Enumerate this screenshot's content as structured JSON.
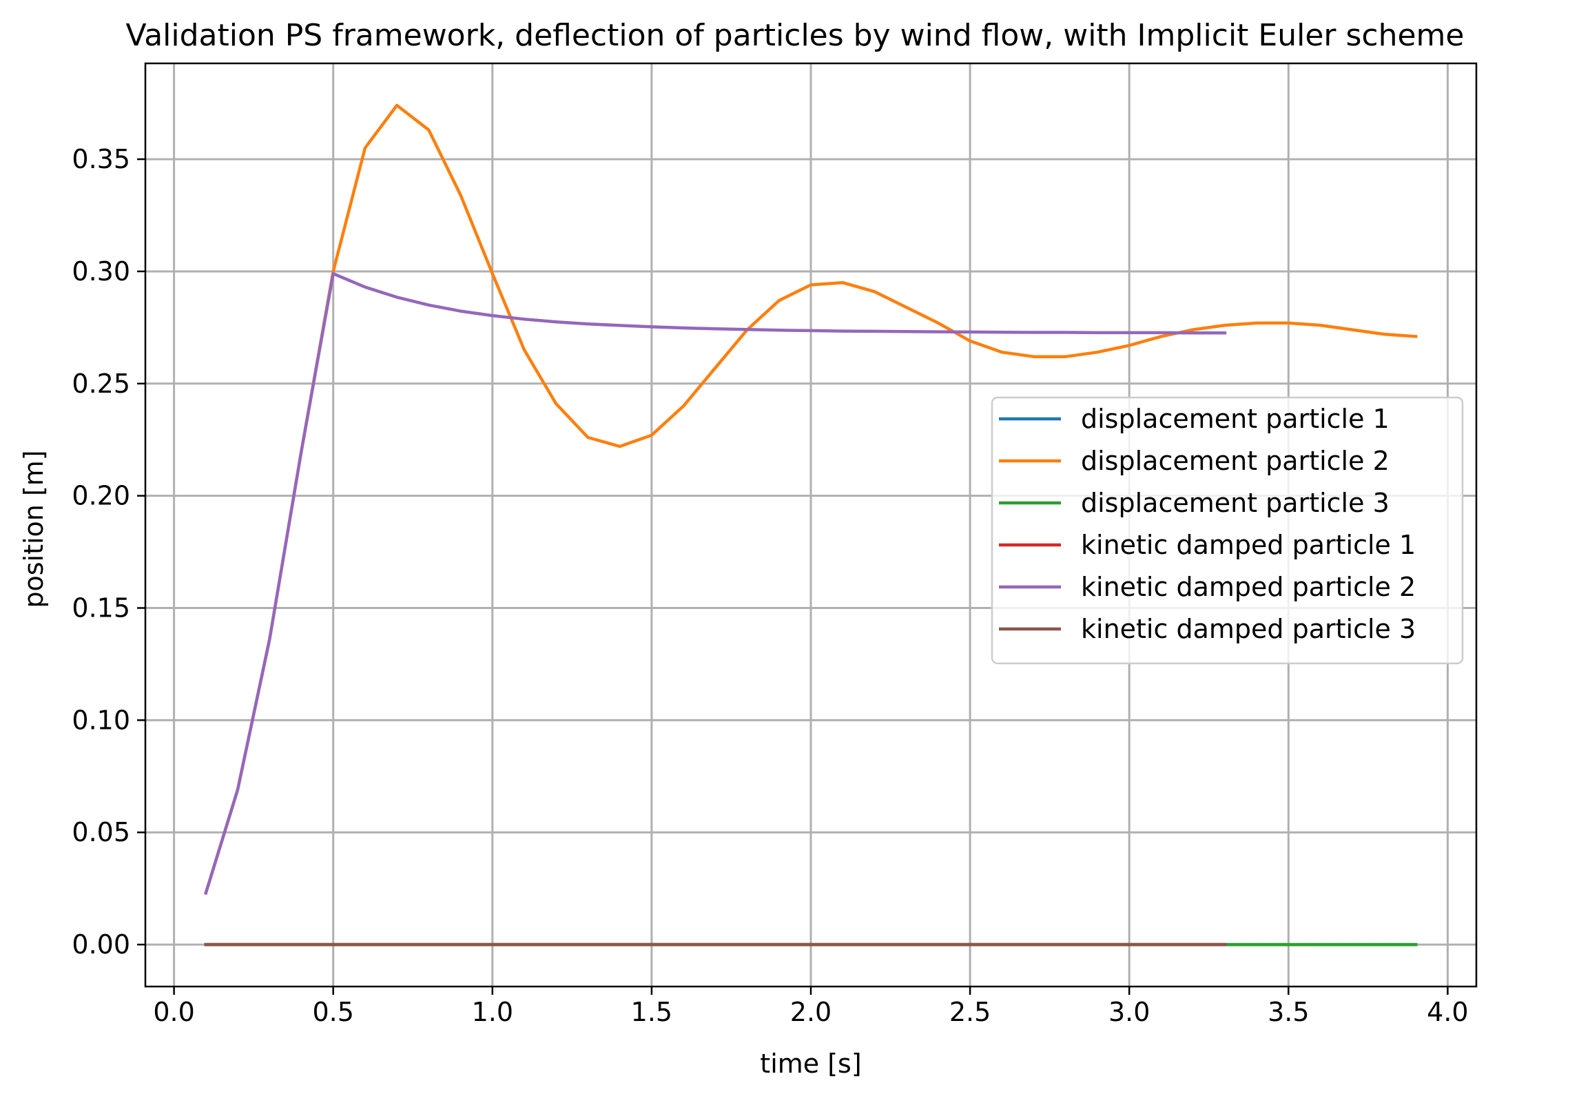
{
  "chart_data": {
    "type": "line",
    "title": "Validation PS framework, deflection of particles by wind flow, with Implicit Euler scheme",
    "xlabel": "time [s]",
    "ylabel": "position [m]",
    "xlim": [
      -0.09,
      4.09
    ],
    "ylim": [
      -0.0187,
      0.3927
    ],
    "xticks": [
      0.0,
      0.5,
      1.0,
      1.5,
      2.0,
      2.5,
      3.0,
      3.5,
      4.0
    ],
    "xtick_labels": [
      "0.0",
      "0.5",
      "1.0",
      "1.5",
      "2.0",
      "2.5",
      "3.0",
      "3.5",
      "4.0"
    ],
    "yticks": [
      0.0,
      0.05,
      0.1,
      0.15,
      0.2,
      0.25,
      0.3,
      0.35
    ],
    "ytick_labels": [
      "0.00",
      "0.05",
      "0.10",
      "0.15",
      "0.20",
      "0.25",
      "0.30",
      "0.35"
    ],
    "grid": true,
    "legend_position": "center-right",
    "series": [
      {
        "name": "displacement particle 1",
        "color": "#1f77b4",
        "x": [
          0.1,
          0.2,
          0.3,
          0.4,
          0.5,
          0.6,
          0.7,
          0.8,
          0.9,
          1.0,
          1.1,
          1.2,
          1.3,
          1.4,
          1.5,
          1.6,
          1.7,
          1.8,
          1.9,
          2.0,
          2.1,
          2.2,
          2.3,
          2.4,
          2.5,
          2.6,
          2.7,
          2.8,
          2.9,
          3.0,
          3.1,
          3.2,
          3.3,
          3.4,
          3.5,
          3.6,
          3.7,
          3.8,
          3.9
        ],
        "y": [
          0,
          0,
          0,
          0,
          0,
          0,
          0,
          0,
          0,
          0,
          0,
          0,
          0,
          0,
          0,
          0,
          0,
          0,
          0,
          0,
          0,
          0,
          0,
          0,
          0,
          0,
          0,
          0,
          0,
          0,
          0,
          0,
          0,
          0,
          0,
          0,
          0,
          0,
          0
        ]
      },
      {
        "name": "displacement particle 2",
        "color": "#ff7f0e",
        "x": [
          0.1,
          0.2,
          0.3,
          0.4,
          0.5,
          0.6,
          0.7,
          0.8,
          0.9,
          1.0,
          1.1,
          1.2,
          1.3,
          1.4,
          1.5,
          1.6,
          1.7,
          1.8,
          1.9,
          2.0,
          2.1,
          2.2,
          2.3,
          2.4,
          2.5,
          2.6,
          2.7,
          2.8,
          2.9,
          3.0,
          3.1,
          3.2,
          3.3,
          3.4,
          3.5,
          3.6,
          3.7,
          3.8,
          3.9
        ],
        "y": [
          0.023,
          0.069,
          0.136,
          0.22,
          0.3,
          0.355,
          0.374,
          0.363,
          0.334,
          0.299,
          0.265,
          0.241,
          0.226,
          0.222,
          0.227,
          0.24,
          0.257,
          0.274,
          0.287,
          0.294,
          0.295,
          0.291,
          0.284,
          0.277,
          0.269,
          0.264,
          0.262,
          0.262,
          0.264,
          0.267,
          0.271,
          0.274,
          0.276,
          0.277,
          0.277,
          0.276,
          0.274,
          0.272,
          0.271
        ]
      },
      {
        "name": "displacement particle 3",
        "color": "#2ca02c",
        "x": [
          0.1,
          0.2,
          0.3,
          0.4,
          0.5,
          0.6,
          0.7,
          0.8,
          0.9,
          1.0,
          1.1,
          1.2,
          1.3,
          1.4,
          1.5,
          1.6,
          1.7,
          1.8,
          1.9,
          2.0,
          2.1,
          2.2,
          2.3,
          2.4,
          2.5,
          2.6,
          2.7,
          2.8,
          2.9,
          3.0,
          3.1,
          3.2,
          3.3,
          3.4,
          3.5,
          3.6,
          3.7,
          3.8,
          3.9
        ],
        "y": [
          0,
          0,
          0,
          0,
          0,
          0,
          0,
          0,
          0,
          0,
          0,
          0,
          0,
          0,
          0,
          0,
          0,
          0,
          0,
          0,
          0,
          0,
          0,
          0,
          0,
          0,
          0,
          0,
          0,
          0,
          0,
          0,
          0,
          0,
          0,
          0,
          0,
          0,
          0
        ]
      },
      {
        "name": "kinetic damped particle 1",
        "color": "#d62728",
        "x": [
          0.1,
          0.2,
          0.3,
          0.4,
          0.5,
          0.6,
          0.7,
          0.8,
          0.9,
          1.0,
          1.1,
          1.2,
          1.3,
          1.4,
          1.5,
          1.6,
          1.7,
          1.8,
          1.9,
          2.0,
          2.1,
          2.2,
          2.3,
          2.4,
          2.5,
          2.6,
          2.7,
          2.8,
          2.9,
          3.0,
          3.1,
          3.2,
          3.3
        ],
        "y": [
          0,
          0,
          0,
          0,
          0,
          0,
          0,
          0,
          0,
          0,
          0,
          0,
          0,
          0,
          0,
          0,
          0,
          0,
          0,
          0,
          0,
          0,
          0,
          0,
          0,
          0,
          0,
          0,
          0,
          0,
          0,
          0,
          0
        ]
      },
      {
        "name": "kinetic damped particle 2",
        "color": "#9467bd",
        "x": [
          0.1,
          0.2,
          0.3,
          0.4,
          0.5,
          0.6,
          0.7,
          0.8,
          0.9,
          1.0,
          1.1,
          1.2,
          1.3,
          1.4,
          1.5,
          1.6,
          1.7,
          1.8,
          1.9,
          2.0,
          2.1,
          2.2,
          2.3,
          2.4,
          2.5,
          2.6,
          2.7,
          2.8,
          2.9,
          3.0,
          3.1,
          3.2,
          3.3
        ],
        "y": [
          0.023,
          0.069,
          0.136,
          0.22,
          0.299,
          0.293,
          0.2885,
          0.285,
          0.2823,
          0.2803,
          0.2787,
          0.2775,
          0.2766,
          0.2759,
          0.2753,
          0.2748,
          0.2744,
          0.2741,
          0.2738,
          0.2736,
          0.2734,
          0.2733,
          0.2732,
          0.2731,
          0.273,
          0.2729,
          0.2728,
          0.2728,
          0.2727,
          0.2727,
          0.2727,
          0.2726,
          0.2726
        ]
      },
      {
        "name": "kinetic damped particle 3",
        "color": "#8c564b",
        "x": [
          0.1,
          0.2,
          0.3,
          0.4,
          0.5,
          0.6,
          0.7,
          0.8,
          0.9,
          1.0,
          1.1,
          1.2,
          1.3,
          1.4,
          1.5,
          1.6,
          1.7,
          1.8,
          1.9,
          2.0,
          2.1,
          2.2,
          2.3,
          2.4,
          2.5,
          2.6,
          2.7,
          2.8,
          2.9,
          3.0,
          3.1,
          3.2,
          3.3
        ],
        "y": [
          0,
          0,
          0,
          0,
          0,
          0,
          0,
          0,
          0,
          0,
          0,
          0,
          0,
          0,
          0,
          0,
          0,
          0,
          0,
          0,
          0,
          0,
          0,
          0,
          0,
          0,
          0,
          0,
          0,
          0,
          0,
          0,
          0
        ]
      }
    ]
  }
}
